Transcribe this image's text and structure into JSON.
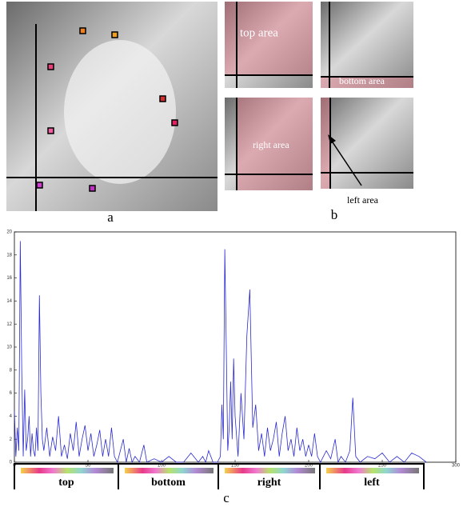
{
  "panel_labels": {
    "a": "a",
    "b": "b",
    "c": "c"
  },
  "thumbnails": [
    "top area",
    "bottom area",
    "right area",
    "left area"
  ],
  "chart_data": {
    "type": "line",
    "segments": [
      "top",
      "bottom",
      "right",
      "left"
    ],
    "x": [
      0,
      1,
      2,
      3,
      4,
      5,
      6,
      7,
      8,
      9,
      10,
      11,
      12,
      13,
      14,
      15,
      16,
      17,
      18,
      19,
      20,
      22,
      24,
      26,
      28,
      30,
      32,
      34,
      36,
      38,
      40,
      42,
      44,
      46,
      48,
      50,
      52,
      54,
      56,
      58,
      60,
      62,
      64,
      66,
      68,
      70,
      74,
      76,
      78,
      80,
      82,
      85,
      88,
      90,
      95,
      100,
      105,
      110,
      115,
      120,
      125,
      128,
      130,
      132,
      135,
      138,
      140,
      141,
      142,
      143,
      144,
      145,
      146,
      147,
      148,
      149,
      150,
      152,
      154,
      156,
      158,
      160,
      162,
      164,
      166,
      168,
      170,
      172,
      174,
      176,
      178,
      180,
      182,
      184,
      186,
      188,
      190,
      192,
      194,
      196,
      198,
      200,
      202,
      204,
      206,
      208,
      210,
      212,
      215,
      218,
      220,
      222,
      225,
      228,
      230,
      232,
      235,
      240,
      245,
      250,
      255,
      260,
      265,
      270,
      275,
      280
    ],
    "values": [
      4.5,
      0.5,
      3,
      1,
      19.2,
      8,
      0.5,
      6.3,
      1,
      2,
      4,
      0.5,
      2.5,
      1,
      0.5,
      3,
      1,
      14.5,
      6,
      2,
      1,
      3,
      0.5,
      2.2,
      1,
      4,
      0.5,
      1.5,
      0.3,
      2.5,
      1,
      3.5,
      0.5,
      2,
      3.2,
      1,
      2.5,
      0.5,
      1.5,
      2.8,
      0.5,
      2,
      0.5,
      3,
      0.5,
      0,
      2,
      0,
      1.2,
      0,
      0.5,
      0,
      1.5,
      0,
      0.3,
      0,
      0.5,
      0,
      0,
      0.8,
      0,
      0.5,
      0,
      1,
      0,
      0,
      0.5,
      5,
      2,
      18.5,
      10,
      1,
      3,
      7,
      2,
      9,
      4,
      0.5,
      6,
      2,
      11,
      15,
      3,
      5,
      1,
      2.5,
      0.5,
      3,
      1,
      2,
      3.5,
      0.5,
      2.5,
      4,
      1,
      2,
      0.5,
      3,
      1,
      2,
      0.5,
      1.5,
      0.5,
      2.5,
      0.5,
      0,
      0.5,
      1,
      0.3,
      2,
      0,
      0.5,
      0,
      1,
      5.6,
      0.5,
      0,
      0.5,
      0.3,
      0.8,
      0,
      0.5,
      0,
      0.8,
      0.5,
      0
    ],
    "color": "#2a2ad0",
    "xlim": [
      0,
      300
    ],
    "ylim": [
      0,
      20
    ],
    "xticks": [
      0,
      50,
      100,
      150,
      200,
      250,
      300
    ],
    "yticks": [
      0,
      2,
      4,
      6,
      8,
      10,
      12,
      14,
      16,
      18,
      20
    ]
  }
}
